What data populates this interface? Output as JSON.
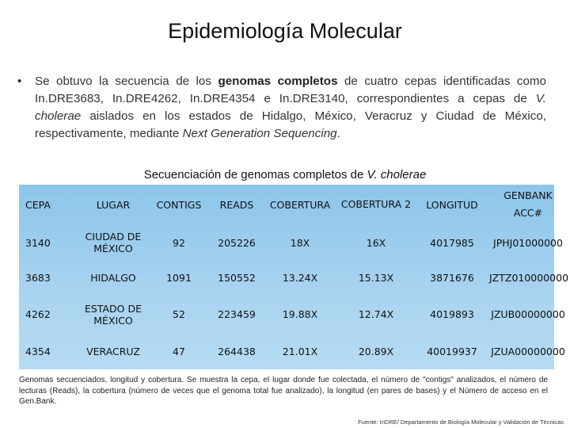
{
  "title": "Epidemiología Molecular",
  "bullet": {
    "marker": "•",
    "t1": "Se obtuvo la secuencia de los ",
    "bold": "genomas completos",
    "t2": " de cuatro cepas identificadas como In.DRE3683, In.DRE4262, In.DRE4354 e In.DRE3140, correspondientes a cepas de ",
    "italic1": "V. cholerae",
    "t3": " aislados en los estados de Hidalgo, México, Veracruz y Ciudad de México, respectivamente, mediante ",
    "italic2": "Next Generation Sequencing",
    "t4": "."
  },
  "table": {
    "caption_prefix": "Secuenciación de genomas completos de ",
    "caption_italic": "V. cholerae",
    "headers": [
      "CEPA",
      "LUGAR",
      "CONTIGS",
      "READS",
      "COBERTURA",
      "COBERTURA 2",
      "LONGITUD",
      "GENBANK ACC#"
    ],
    "rows": [
      {
        "cepa": "3140",
        "lugar": "CIUDAD DE MÉXICO",
        "contigs": "92",
        "reads": "205226",
        "cobertura": "18X",
        "cobertura2": "16X",
        "longitud": "4017985",
        "genbank": "JPHJ01000000"
      },
      {
        "cepa": "3683",
        "lugar": "HIDALGO",
        "contigs": "1091",
        "reads": "150552",
        "cobertura": "13.24X",
        "cobertura2": "15.13X",
        "longitud": "3871676",
        "genbank": "JZTZ010000000"
      },
      {
        "cepa": "4262",
        "lugar": "ESTADO DE MÉXICO",
        "contigs": "52",
        "reads": "223459",
        "cobertura": "19.88X",
        "cobertura2": "12.74X",
        "longitud": "4019893",
        "genbank": "JZUB00000000"
      },
      {
        "cepa": "4354",
        "lugar": "VERACRUZ",
        "contigs": "47",
        "reads": "264438",
        "cobertura": "21.01X",
        "cobertura2": "20.89X",
        "longitud": "40019937",
        "genbank": "JZUA00000000"
      }
    ]
  },
  "notes": "Genomas secuenciados, longitud y cobertura. Se muestra la cepa, el lugar donde fue colectada, el número de \"contigs\" analizados, el número de lecturas (Reads), la cobertura (número de veces que el genoma total fue analizado), la longitud (en pares de bases) y el Número de acceso en el Gen.Bank.",
  "source": "Fuente: InDRE/ Departamento de Biología Molecular y Validación de Técnicas",
  "colors": {
    "table_bg": "#a9d4f0"
  }
}
